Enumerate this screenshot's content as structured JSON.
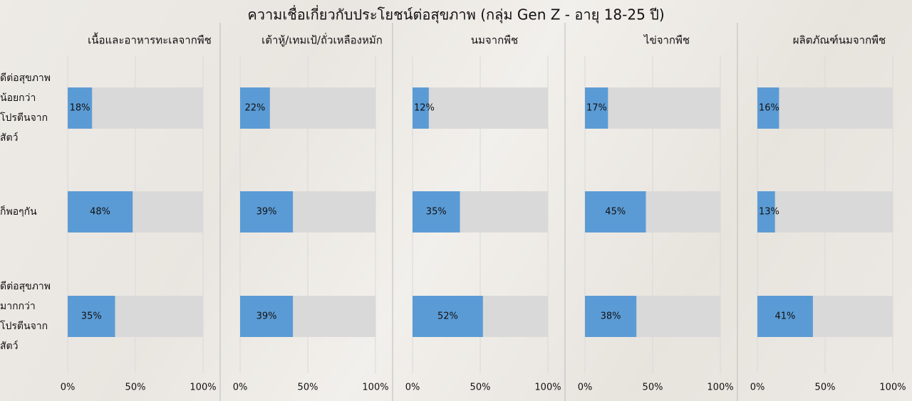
{
  "chart_data": {
    "type": "bar",
    "title": "ความเชื่อเกี่ยวกับประโยชน์ต่อสุขภาพ (กลุ่ม Gen Z - อายุ 18-25 ปี)",
    "categories": [
      "ดีต่อสุขภาพน้อยกว่าโปรตีนจากสัตว์",
      "ก็พอๆกัน",
      "ดีต่อสุขภาพมากกว่าโปรตีนจากสัตว์"
    ],
    "xlim": [
      0,
      100
    ],
    "xticks": [
      {
        "value": 0,
        "label": "0%"
      },
      {
        "value": 50,
        "label": "50%"
      },
      {
        "value": 100,
        "label": "100%"
      }
    ],
    "grid": true,
    "series": [
      {
        "name": "เนื้อและอาหารทะเลจากพืช",
        "color": "#5b9bd5",
        "values": [
          18,
          48,
          35
        ],
        "value_labels": [
          "18%",
          "48%",
          "35%"
        ]
      },
      {
        "name": "เต้าหู้/เทมเป้/ถั่วเหลืองหมัก",
        "color": "#5b9bd5",
        "values": [
          22,
          39,
          39
        ],
        "value_labels": [
          "22%",
          "39%",
          "39%"
        ]
      },
      {
        "name": "นมจากพืช",
        "color": "#5b9bd5",
        "values": [
          12,
          35,
          52
        ],
        "value_labels": [
          "12%",
          "35%",
          "52%"
        ]
      },
      {
        "name": "ไข่จากพืช",
        "color": "#5b9bd5",
        "values": [
          17,
          45,
          38
        ],
        "value_labels": [
          "17%",
          "45%",
          "38%"
        ]
      },
      {
        "name": "ผลิตภัณฑ์นมจากพืช",
        "color": "#5b9bd5",
        "values": [
          16,
          13,
          41
        ],
        "value_labels": [
          "16%",
          "13%",
          "41%"
        ]
      }
    ]
  }
}
